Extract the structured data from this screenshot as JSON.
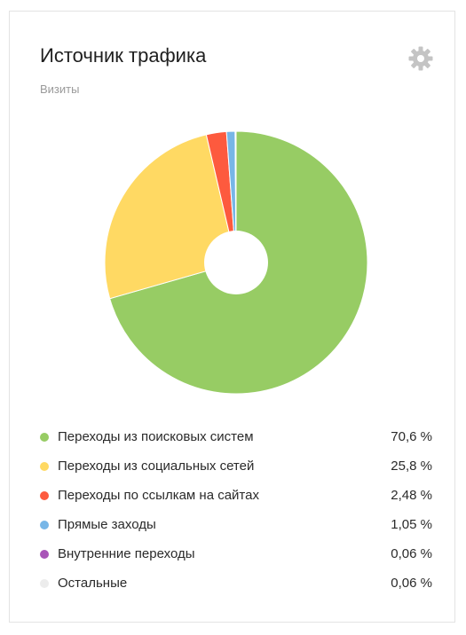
{
  "header": {
    "title": "Источник трафика",
    "subtitle": "Визиты",
    "settings_icon": "gear-icon"
  },
  "chart_data": {
    "type": "pie",
    "donut": true,
    "title": "Источник трафика",
    "subtitle": "Визиты",
    "legend_position": "bottom",
    "unit": "%",
    "slices": [
      {
        "label": "Переходы из поисковых систем",
        "value": 70.6,
        "display": "70,6 %",
        "color": "#97cc64"
      },
      {
        "label": "Переходы из социальных сетей",
        "value": 25.8,
        "display": "25,8 %",
        "color": "#ffd963"
      },
      {
        "label": "Переходы по ссылкам на сайтах",
        "value": 2.48,
        "display": "2,48 %",
        "color": "#fd5a3e"
      },
      {
        "label": "Прямые заходы",
        "value": 1.05,
        "display": "1,05 %",
        "color": "#77b6e7"
      },
      {
        "label": "Внутренние переходы",
        "value": 0.06,
        "display": "0,06 %",
        "color": "#a955b8"
      },
      {
        "label": "Остальные",
        "value": 0.06,
        "display": "0,06 %",
        "color": "#ececec"
      }
    ]
  }
}
